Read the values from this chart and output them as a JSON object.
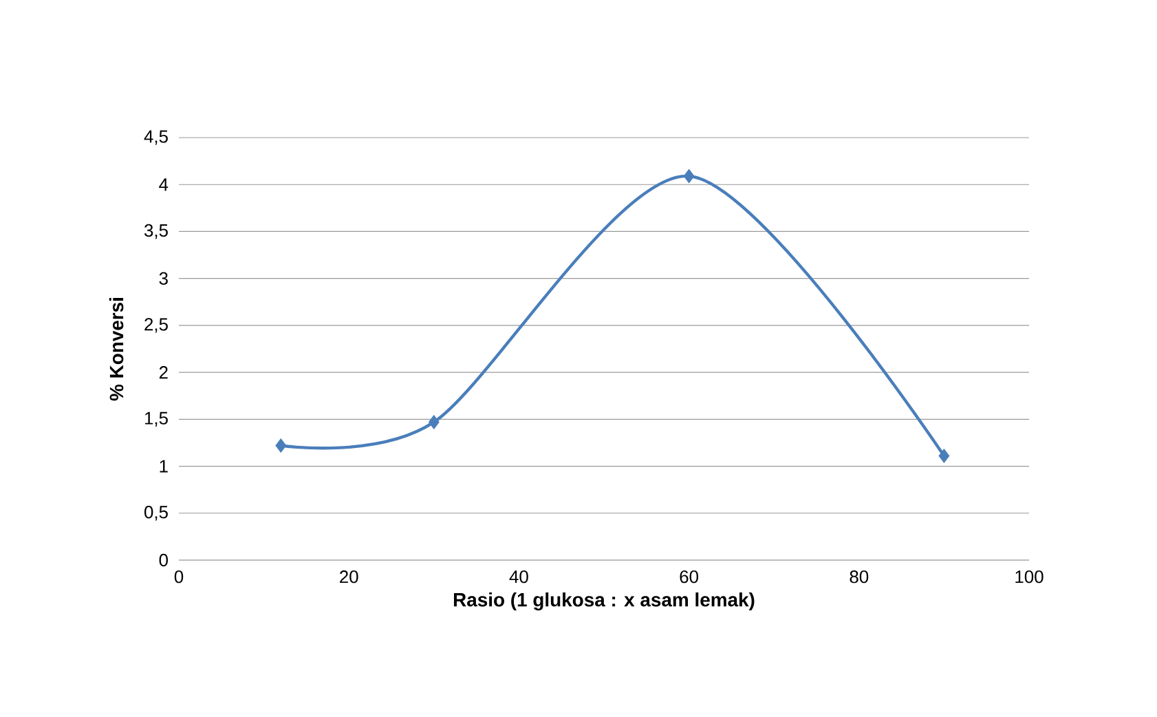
{
  "chart_data": {
    "type": "line",
    "xlabel": "Rasio (1 glukosa : x asam lemak)",
    "ylabel": "% Konversi",
    "x": [
      12,
      30,
      60,
      90
    ],
    "series": [
      {
        "color": "#4a7ebb",
        "values": [
          1.22,
          1.47,
          4.09,
          1.11
        ]
      }
    ],
    "xlim": [
      0,
      100
    ],
    "xticks": [
      0,
      20,
      40,
      60,
      80,
      100
    ],
    "ylim": [
      0,
      4.5
    ],
    "yticks": [
      0,
      {
        "value": 0.5,
        "label": "0,5"
      },
      1,
      {
        "value": 1.5,
        "label": "1,5"
      },
      2,
      {
        "value": 2.5,
        "label": "2,5"
      },
      3,
      {
        "value": 3.5,
        "label": "3,5"
      },
      4,
      {
        "value": 4.5,
        "label": "4,5"
      }
    ],
    "grid": "y",
    "marker": "diamond",
    "line_style": "solid"
  }
}
